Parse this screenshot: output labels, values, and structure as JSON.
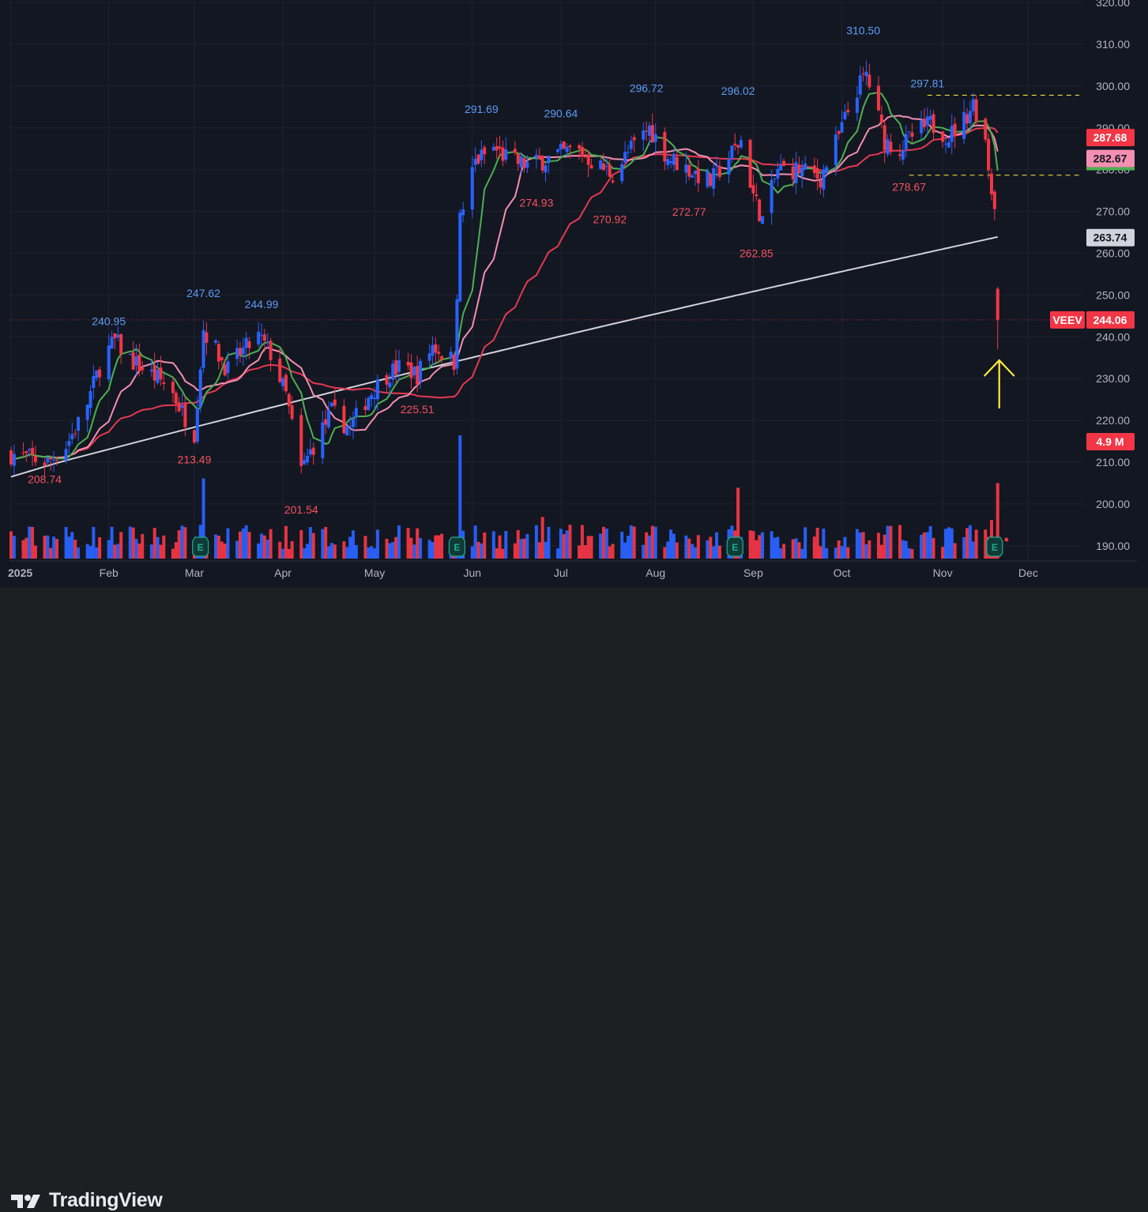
{
  "footer": {
    "brand": "TradingView"
  },
  "colors": {
    "background": "#131722",
    "up": "#2962ff",
    "down": "#f23645",
    "ma_fast": "#4caf50",
    "ma_mid": "#f48fb1",
    "ma_slow": "#e53950",
    "ma_200": "#d1d4dc",
    "arrow": "#ffeb3b"
  },
  "chart_data": {
    "type": "candlestick",
    "symbol": "VEEV",
    "y_axis": {
      "ticks": [
        "320.00",
        "310.00",
        "300.00",
        "290.00",
        "280.00",
        "270.00",
        "260.00",
        "250.00",
        "240.00",
        "230.00",
        "220.00",
        "210.00",
        "200.00",
        "190.00"
      ],
      "range": [
        186,
        322
      ]
    },
    "x_axis": {
      "labels": [
        "2025",
        "Feb",
        "Mar",
        "Apr",
        "May",
        "Jun",
        "Jul",
        "Aug",
        "Sep",
        "Oct",
        "Nov",
        "Dec"
      ]
    },
    "price_labels": [
      {
        "label": "",
        "value": "287.68",
        "price": 287.68,
        "bg": "#f23645",
        "fg": "#ffffff"
      },
      {
        "label": "",
        "value": "282.67",
        "price": 282.67,
        "bg": "#f48fb1",
        "fg": "#131722"
      },
      {
        "label": "",
        "value": "263.74",
        "price": 263.74,
        "bg": "#d1d4dc",
        "fg": "#131722"
      },
      {
        "label": "VEEV",
        "value": "244.06",
        "price": 244.06,
        "bg": "#f23645",
        "fg": "#ffffff"
      }
    ],
    "volume_label": "4.9 M",
    "annotations": [
      {
        "text": "240.95",
        "kind": "peak",
        "date": "2025-02-03",
        "price": 240.95
      },
      {
        "text": "247.62",
        "kind": "peak",
        "date": "2025-03-06",
        "price": 247.62
      },
      {
        "text": "244.99",
        "kind": "peak",
        "date": "2025-03-25",
        "price": 244.99
      },
      {
        "text": "291.69",
        "kind": "peak",
        "date": "2025-06-05",
        "price": 291.69
      },
      {
        "text": "290.64",
        "kind": "peak",
        "date": "2025-07-01",
        "price": 290.64
      },
      {
        "text": "296.72",
        "kind": "peak",
        "date": "2025-07-29",
        "price": 296.72
      },
      {
        "text": "296.02",
        "kind": "peak",
        "date": "2025-08-28",
        "price": 296.02
      },
      {
        "text": "310.50",
        "kind": "peak",
        "date": "2025-10-08",
        "price": 310.5
      },
      {
        "text": "297.81",
        "kind": "peak",
        "date": "2025-10-29",
        "price": 297.81
      },
      {
        "text": "208.74",
        "kind": "trough",
        "date": "2025-01-13",
        "price": 208.74
      },
      {
        "text": "213.49",
        "kind": "trough",
        "date": "2025-03-03",
        "price": 213.49
      },
      {
        "text": "201.54",
        "kind": "trough",
        "date": "2025-04-07",
        "price": 201.54
      },
      {
        "text": "225.51",
        "kind": "trough",
        "date": "2025-05-15",
        "price": 225.51
      },
      {
        "text": "274.93",
        "kind": "trough",
        "date": "2025-06-23",
        "price": 274.93
      },
      {
        "text": "270.92",
        "kind": "trough",
        "date": "2025-07-17",
        "price": 270.92
      },
      {
        "text": "272.77",
        "kind": "trough",
        "date": "2025-08-12",
        "price": 272.77
      },
      {
        "text": "262.85",
        "kind": "trough",
        "date": "2025-09-03",
        "price": 262.85
      },
      {
        "text": "278.67",
        "kind": "trough",
        "date": "2025-10-23",
        "price": 278.67
      }
    ],
    "levels": [
      {
        "price": 297.81,
        "style": "dashed",
        "color": "#ffeb3b"
      },
      {
        "price": 278.67,
        "style": "dashed",
        "color": "#ffeb3b"
      },
      {
        "price": 244.06,
        "style": "dotted",
        "color": "#f23645"
      }
    ],
    "earnings_markers": [
      "2025-03-05",
      "2025-05-28",
      "2025-08-27",
      "2025-11-20"
    ],
    "earnings_label": "E",
    "anchors": [
      {
        "date": "2025-01-02",
        "price": 212
      },
      {
        "date": "2025-01-08",
        "price": 211
      },
      {
        "date": "2025-01-14",
        "price": 210
      },
      {
        "date": "2025-01-20",
        "price": 214
      },
      {
        "date": "2025-01-26",
        "price": 222
      },
      {
        "date": "2025-02-01",
        "price": 235
      },
      {
        "date": "2025-02-05",
        "price": 239
      },
      {
        "date": "2025-02-11",
        "price": 234
      },
      {
        "date": "2025-02-17",
        "price": 231
      },
      {
        "date": "2025-02-23",
        "price": 228
      },
      {
        "date": "2025-02-27",
        "price": 222
      },
      {
        "date": "2025-03-03",
        "price": 217
      },
      {
        "date": "2025-03-06",
        "price": 242
      },
      {
        "date": "2025-03-10",
        "price": 237
      },
      {
        "date": "2025-03-14",
        "price": 232
      },
      {
        "date": "2025-03-18",
        "price": 236
      },
      {
        "date": "2025-03-24",
        "price": 240
      },
      {
        "date": "2025-03-28",
        "price": 236
      },
      {
        "date": "2025-04-02",
        "price": 226
      },
      {
        "date": "2025-04-07",
        "price": 208
      },
      {
        "date": "2025-04-11",
        "price": 214
      },
      {
        "date": "2025-04-17",
        "price": 222
      },
      {
        "date": "2025-04-23",
        "price": 218
      },
      {
        "date": "2025-04-29",
        "price": 226
      },
      {
        "date": "2025-05-05",
        "price": 231
      },
      {
        "date": "2025-05-10",
        "price": 233
      },
      {
        "date": "2025-05-15",
        "price": 231
      },
      {
        "date": "2025-05-20",
        "price": 238
      },
      {
        "date": "2025-05-27",
        "price": 234
      },
      {
        "date": "2025-05-29",
        "price": 268
      },
      {
        "date": "2025-06-03",
        "price": 282
      },
      {
        "date": "2025-06-09",
        "price": 285
      },
      {
        "date": "2025-06-15",
        "price": 282
      },
      {
        "date": "2025-06-21",
        "price": 281
      },
      {
        "date": "2025-06-28",
        "price": 283
      },
      {
        "date": "2025-07-06",
        "price": 285
      },
      {
        "date": "2025-07-13",
        "price": 281
      },
      {
        "date": "2025-07-18",
        "price": 279
      },
      {
        "date": "2025-07-24",
        "price": 285
      },
      {
        "date": "2025-07-30",
        "price": 290
      },
      {
        "date": "2025-08-05",
        "price": 283
      },
      {
        "date": "2025-08-12",
        "price": 280
      },
      {
        "date": "2025-08-19",
        "price": 277
      },
      {
        "date": "2025-08-25",
        "price": 283
      },
      {
        "date": "2025-08-29",
        "price": 287
      },
      {
        "date": "2025-09-02",
        "price": 274
      },
      {
        "date": "2025-09-05",
        "price": 268
      },
      {
        "date": "2025-09-10",
        "price": 280
      },
      {
        "date": "2025-09-17",
        "price": 280
      },
      {
        "date": "2025-09-24",
        "price": 278
      },
      {
        "date": "2025-09-30",
        "price": 288
      },
      {
        "date": "2025-10-05",
        "price": 298
      },
      {
        "date": "2025-10-09",
        "price": 303
      },
      {
        "date": "2025-10-15",
        "price": 287
      },
      {
        "date": "2025-10-20",
        "price": 285
      },
      {
        "date": "2025-10-24",
        "price": 288
      },
      {
        "date": "2025-10-30",
        "price": 291
      },
      {
        "date": "2025-11-05",
        "price": 288
      },
      {
        "date": "2025-11-10",
        "price": 292
      },
      {
        "date": "2025-11-13",
        "price": 296
      },
      {
        "date": "2025-11-17",
        "price": 287
      },
      {
        "date": "2025-11-19",
        "price": 275
      },
      {
        "date": "2025-11-21",
        "price": 270
      },
      {
        "date": "2025-11-22",
        "price": 244
      }
    ],
    "volume_spikes": [
      {
        "date": "2025-03-06",
        "value": 5.2
      },
      {
        "date": "2025-05-29",
        "value": 8.0
      },
      {
        "date": "2025-08-28",
        "value": 4.6
      },
      {
        "date": "2025-11-19",
        "value": 2.5
      },
      {
        "date": "2025-11-22",
        "value": 4.9
      },
      {
        "date": "2025-06-25",
        "value": 2.7
      }
    ]
  }
}
